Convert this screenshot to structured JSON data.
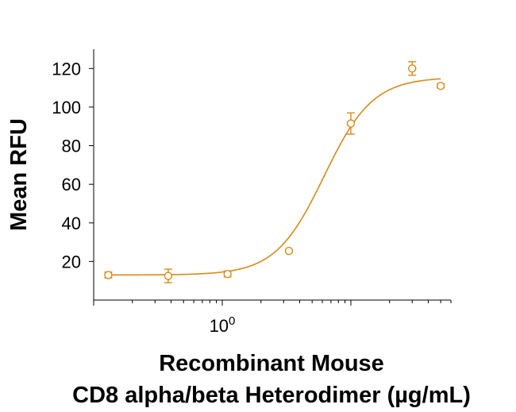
{
  "chart_data": {
    "type": "scatter",
    "title": "",
    "xlabel_line1": "Recombinant Mouse",
    "xlabel_line2": "CD8 alpha/beta Heterodimer (µg/mL)",
    "ylabel": "Mean RFU",
    "x_scale": "log",
    "xlim": [
      0.1,
      60
    ],
    "ylim": [
      0,
      130
    ],
    "x_ticks": [
      {
        "base": "10",
        "exp": "0",
        "value": 1
      }
    ],
    "y_ticks": [
      20,
      40,
      60,
      80,
      100,
      120
    ],
    "grid": false,
    "color": "#D88A1A",
    "points": [
      {
        "x": 0.13,
        "y": 13,
        "err": 1.5
      },
      {
        "x": 0.38,
        "y": 12.5,
        "err": 3.5
      },
      {
        "x": 1.1,
        "y": 13.5,
        "err": 1.5
      },
      {
        "x": 3.3,
        "y": 25.5,
        "err": 0.5
      },
      {
        "x": 10,
        "y": 91.5,
        "err": 5.5
      },
      {
        "x": 30,
        "y": 120,
        "err": 3.5
      },
      {
        "x": 50,
        "y": 111,
        "err": 1
      }
    ],
    "fit": {
      "bottom": 13,
      "top": 115.5,
      "ec50": 6.2,
      "hill": 2.3
    }
  }
}
